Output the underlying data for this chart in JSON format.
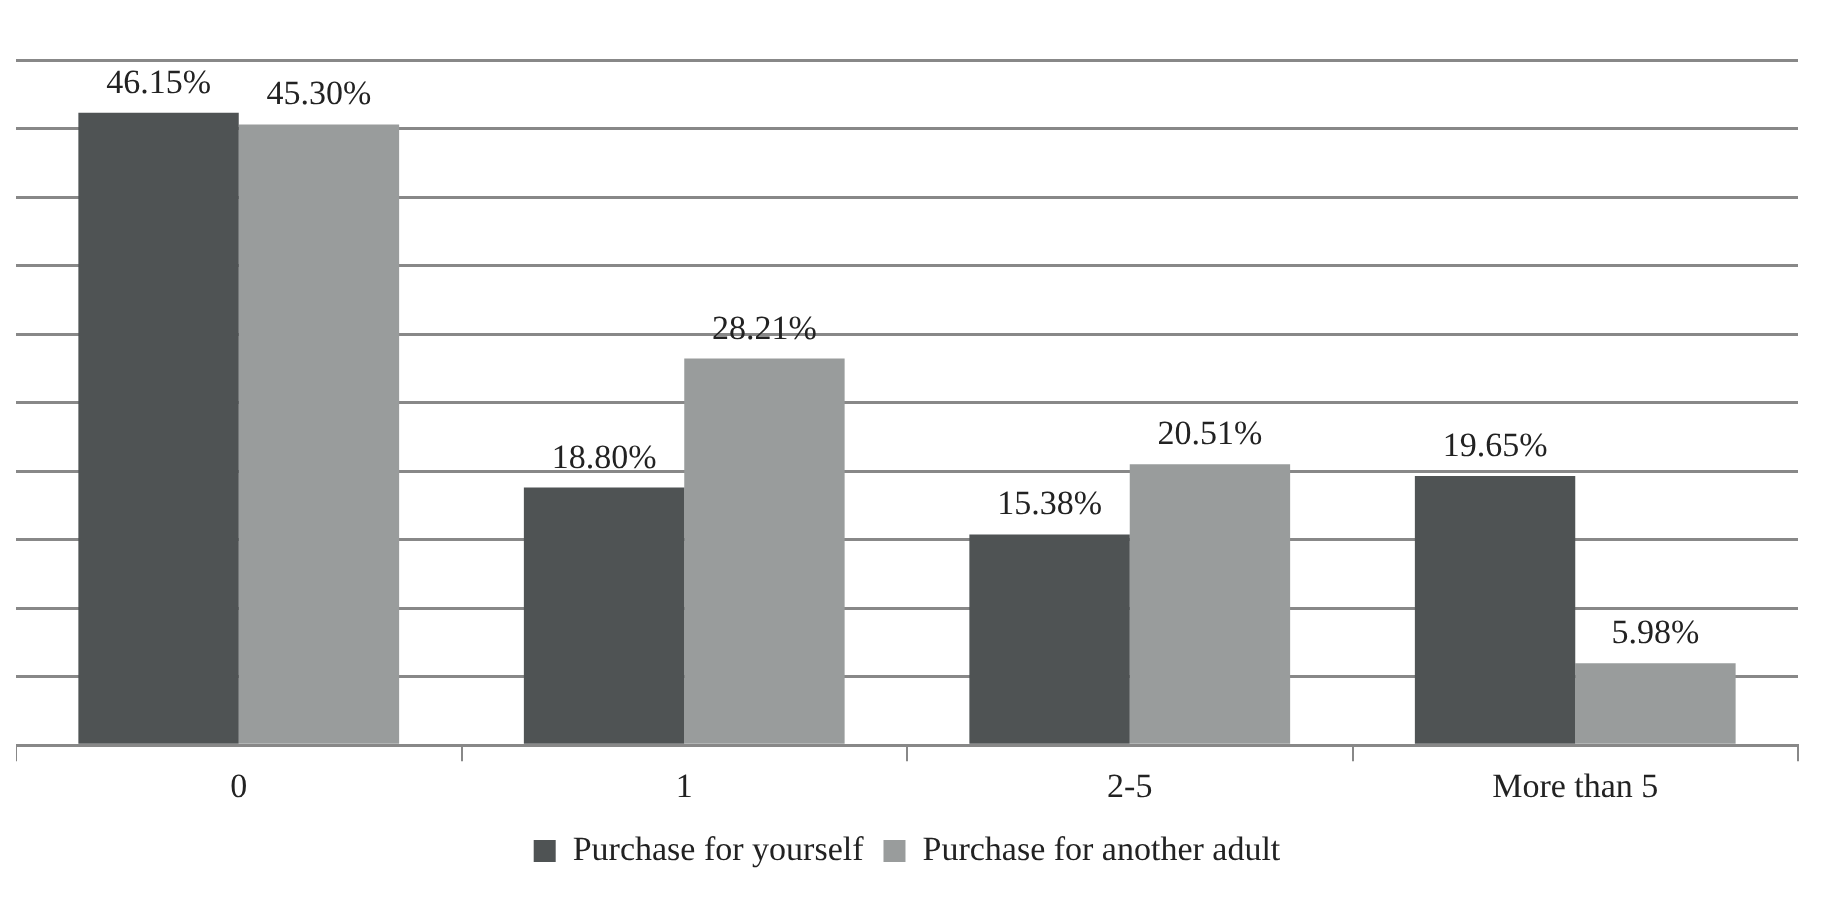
{
  "chart_data": {
    "type": "bar",
    "categories": [
      "0",
      "1",
      "2-5",
      "More than 5"
    ],
    "series": [
      {
        "name": "Purchase for yourself",
        "color": "#4f5354",
        "values": [
          46.15,
          18.8,
          15.38,
          19.65
        ],
        "value_labels": [
          "46.15%",
          "18.80%",
          "15.38%",
          "19.65%"
        ]
      },
      {
        "name": "Purchase for another adult",
        "color": "#999c9c",
        "values": [
          45.3,
          28.21,
          20.51,
          5.98
        ],
        "value_labels": [
          "45.30%",
          "28.21%",
          "20.51%",
          "5.98%"
        ]
      }
    ],
    "ylim": [
      0,
      50
    ],
    "yticks": [
      {
        "value": 0,
        "label": null
      },
      {
        "value": 5,
        "label": null
      },
      {
        "value": 10,
        "label": null
      },
      {
        "value": 15,
        "label": null
      },
      {
        "value": 20,
        "label": null
      },
      {
        "value": 25,
        "label": null
      },
      {
        "value": 30,
        "label": null
      },
      {
        "value": 35,
        "label": null
      },
      {
        "value": 40,
        "label": null
      },
      {
        "value": 45,
        "label": null
      },
      {
        "value": 50,
        "label": null
      }
    ],
    "tick_labels": "x",
    "grid": "y",
    "legend": "bottom"
  }
}
